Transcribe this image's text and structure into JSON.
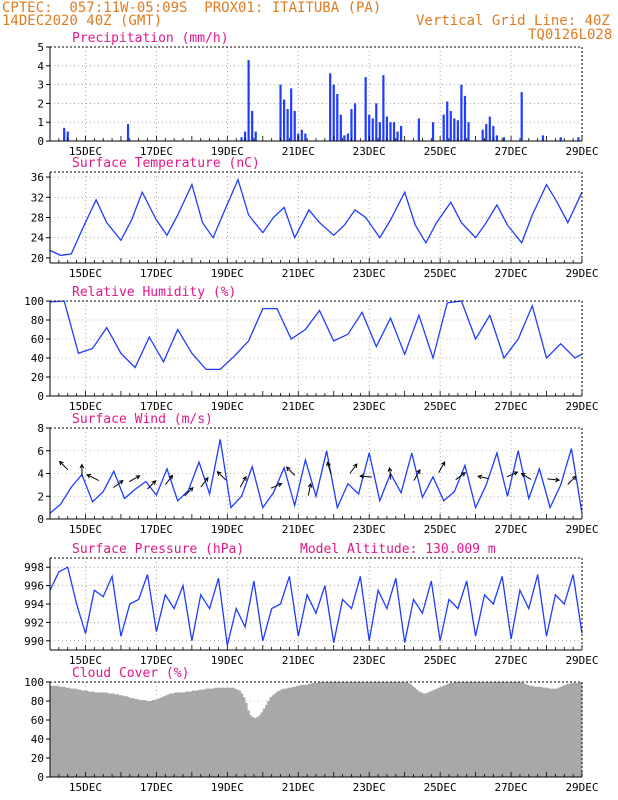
{
  "header": {
    "line1_left": "CPTEC:  057:11W-05:09S  PROX01: ITAITUBA (PA)",
    "line2_left": "14DEC2020 40Z (GMT)",
    "line2_right": "Vertical Grid Line: 40Z",
    "line3_right": "TQ0126L028"
  },
  "colors": {
    "header": "#e07b1f",
    "panel_title": "#e0178c",
    "series": "#1f3cff",
    "cloud": "#a8a8a8",
    "vector": "#000000"
  },
  "chart_data": [
    {
      "type": "bar",
      "title": "Precipitation (mm/h)",
      "ylim": [
        0,
        5
      ],
      "yticks": [
        "0",
        "1",
        "2",
        "3",
        "4",
        "5"
      ],
      "xticks": [
        "15DEC",
        "17DEC",
        "19DEC",
        "21DEC",
        "23DEC",
        "25DEC",
        "27DEC",
        "29DEC"
      ],
      "xlim_days": [
        14,
        29
      ],
      "x": [
        14.4,
        14.5,
        16.2,
        19.4,
        19.5,
        19.6,
        19.7,
        19.8,
        20.5,
        20.6,
        20.7,
        20.8,
        20.9,
        21.0,
        21.1,
        21.2,
        21.9,
        22.0,
        22.1,
        22.2,
        22.3,
        22.4,
        22.5,
        22.6,
        22.9,
        23.0,
        23.1,
        23.2,
        23.3,
        23.4,
        23.5,
        23.6,
        23.7,
        23.8,
        23.9,
        24.4,
        24.8,
        25.1,
        25.2,
        25.3,
        25.4,
        25.5,
        25.6,
        25.7,
        25.8,
        26.2,
        26.3,
        26.4,
        26.5,
        26.6,
        26.8,
        27.3,
        27.9,
        28.4,
        28.9
      ],
      "values": [
        0.7,
        0.5,
        0.9,
        0.2,
        0.5,
        4.3,
        1.6,
        0.5,
        3.0,
        2.2,
        1.7,
        2.8,
        1.6,
        0.4,
        0.6,
        0.4,
        3.6,
        3.0,
        2.5,
        1.4,
        0.3,
        0.4,
        1.7,
        2.0,
        3.4,
        1.4,
        1.2,
        2.0,
        1.0,
        3.5,
        1.3,
        1.0,
        1.0,
        0.5,
        0.8,
        1.2,
        1.0,
        1.4,
        2.1,
        1.6,
        1.2,
        1.1,
        3.0,
        2.4,
        1.0,
        0.6,
        0.9,
        1.3,
        0.8,
        0.3,
        0.2,
        2.6,
        0.3,
        0.2,
        0.2
      ]
    },
    {
      "type": "line",
      "title": "Surface Temperature (nC)",
      "ylim": [
        19,
        37
      ],
      "yticks": [
        "20",
        "24",
        "28",
        "32",
        "36"
      ],
      "xticks": [
        "15DEC",
        "17DEC",
        "19DEC",
        "21DEC",
        "23DEC",
        "25DEC",
        "27DEC",
        "29DEC"
      ],
      "x": [
        14.0,
        14.3,
        14.6,
        14.9,
        15.3,
        15.6,
        16.0,
        16.3,
        16.6,
        17.0,
        17.3,
        17.6,
        18.0,
        18.3,
        18.6,
        18.9,
        19.3,
        19.6,
        20.0,
        20.3,
        20.6,
        20.9,
        21.3,
        21.6,
        22.0,
        22.3,
        22.6,
        22.9,
        23.3,
        23.6,
        24.0,
        24.3,
        24.6,
        24.9,
        25.3,
        25.6,
        26.0,
        26.3,
        26.6,
        26.9,
        27.3,
        27.6,
        28.0,
        28.3,
        28.6,
        29.0
      ],
      "values": [
        21.5,
        20.5,
        20.8,
        25.5,
        31.5,
        27.0,
        23.5,
        27.5,
        33.0,
        27.5,
        24.5,
        28.5,
        34.5,
        27.0,
        24.0,
        29.0,
        35.5,
        28.5,
        25.0,
        28.0,
        30.0,
        24.0,
        29.5,
        27.0,
        24.5,
        26.5,
        29.5,
        28.0,
        24.0,
        27.5,
        33.0,
        26.5,
        23.0,
        27.0,
        31.0,
        27.0,
        24.0,
        27.0,
        30.5,
        26.5,
        23.0,
        28.5,
        34.5,
        31.0,
        27.0,
        33.0
      ]
    },
    {
      "type": "line",
      "title": "Relative Humidity (%)",
      "ylim": [
        0,
        100
      ],
      "yticks": [
        "0",
        "20",
        "40",
        "60",
        "80",
        "100"
      ],
      "xticks": [
        "15DEC",
        "17DEC",
        "19DEC",
        "21DEC",
        "23DEC",
        "25DEC",
        "27DEC",
        "29DEC"
      ],
      "x": [
        14.0,
        14.4,
        14.8,
        15.2,
        15.6,
        16.0,
        16.4,
        16.8,
        17.2,
        17.6,
        18.0,
        18.4,
        18.8,
        19.2,
        19.6,
        20.0,
        20.4,
        20.8,
        21.2,
        21.6,
        22.0,
        22.4,
        22.8,
        23.2,
        23.6,
        24.0,
        24.4,
        24.8,
        25.2,
        25.6,
        26.0,
        26.4,
        26.8,
        27.2,
        27.6,
        28.0,
        28.4,
        28.8,
        29.0
      ],
      "values": [
        99,
        100,
        45,
        50,
        72,
        45,
        30,
        62,
        36,
        70,
        45,
        28,
        28,
        42,
        58,
        92,
        92,
        60,
        70,
        90,
        58,
        65,
        88,
        52,
        82,
        44,
        85,
        40,
        98,
        100,
        60,
        85,
        40,
        60,
        95,
        40,
        55,
        40,
        44
      ]
    },
    {
      "type": "line",
      "title": "Surface Wind (m/s)",
      "ylim": [
        0,
        8
      ],
      "yticks": [
        "0",
        "2",
        "4",
        "6",
        "8"
      ],
      "xticks": [
        "15DEC",
        "17DEC",
        "19DEC",
        "21DEC",
        "23DEC",
        "25DEC",
        "27DEC",
        "29DEC"
      ],
      "x": [
        14.0,
        14.3,
        14.6,
        14.9,
        15.2,
        15.5,
        15.8,
        16.1,
        16.4,
        16.7,
        17.0,
        17.3,
        17.6,
        17.9,
        18.2,
        18.5,
        18.8,
        19.1,
        19.4,
        19.7,
        20.0,
        20.3,
        20.6,
        20.9,
        21.2,
        21.5,
        21.8,
        22.1,
        22.4,
        22.7,
        23.0,
        23.3,
        23.6,
        23.9,
        24.2,
        24.5,
        24.8,
        25.1,
        25.4,
        25.7,
        26.0,
        26.3,
        26.6,
        26.9,
        27.2,
        27.5,
        27.8,
        28.1,
        28.4,
        28.7,
        29.0
      ],
      "values": [
        0.5,
        1.3,
        2.8,
        3.9,
        1.5,
        2.4,
        4.2,
        1.8,
        2.6,
        3.3,
        2.1,
        4.4,
        1.6,
        2.5,
        5.0,
        2.2,
        7.0,
        1.0,
        2.0,
        4.6,
        1.0,
        2.3,
        4.5,
        1.2,
        5.2,
        2.0,
        6.0,
        1.0,
        3.1,
        2.2,
        5.8,
        1.6,
        4.0,
        2.3,
        5.8,
        1.9,
        3.7,
        1.6,
        2.4,
        4.7,
        1.0,
        3.0,
        5.8,
        2.0,
        6.0,
        1.8,
        4.4,
        1.0,
        3.0,
        6.2,
        0.5
      ],
      "vectors": [
        {
          "day": 14.45,
          "speed": 4.5,
          "u": -0.7,
          "v": 0.7
        },
        {
          "day": 14.9,
          "speed": 4.0,
          "u": 0.0,
          "v": 1.0
        },
        {
          "day": 15.3,
          "speed": 3.5,
          "u": -1.0,
          "v": 0.5
        },
        {
          "day": 15.85,
          "speed": 2.9,
          "u": 0.8,
          "v": 0.6
        },
        {
          "day": 16.3,
          "speed": 3.4,
          "u": 0.9,
          "v": 0.5
        },
        {
          "day": 16.8,
          "speed": 2.8,
          "u": 0.7,
          "v": 0.7
        },
        {
          "day": 17.3,
          "speed": 3.2,
          "u": 0.6,
          "v": 0.8
        },
        {
          "day": 17.85,
          "speed": 2.2,
          "u": 0.7,
          "v": 0.7
        },
        {
          "day": 18.3,
          "speed": 3.0,
          "u": 0.6,
          "v": 0.8
        },
        {
          "day": 18.9,
          "speed": 3.6,
          "u": -0.7,
          "v": 0.7
        },
        {
          "day": 19.4,
          "speed": 3.0,
          "u": 0.5,
          "v": 0.9
        },
        {
          "day": 20.3,
          "speed": 2.8,
          "u": 0.9,
          "v": 0.4
        },
        {
          "day": 20.85,
          "speed": 4.0,
          "u": -0.7,
          "v": 0.7
        },
        {
          "day": 21.3,
          "speed": 2.3,
          "u": 0.2,
          "v": 1.0
        },
        {
          "day": 21.9,
          "speed": 4.2,
          "u": -0.3,
          "v": 1.0
        },
        {
          "day": 22.5,
          "speed": 4.2,
          "u": 0.6,
          "v": 0.8
        },
        {
          "day": 23.0,
          "speed": 3.7,
          "u": -1.0,
          "v": 0.1
        },
        {
          "day": 23.6,
          "speed": 3.7,
          "u": -0.1,
          "v": 1.0
        },
        {
          "day": 24.3,
          "speed": 3.6,
          "u": 0.5,
          "v": 0.9
        },
        {
          "day": 25.0,
          "speed": 4.3,
          "u": 0.5,
          "v": 0.9
        },
        {
          "day": 25.5,
          "speed": 3.6,
          "u": 0.8,
          "v": 0.6
        },
        {
          "day": 26.3,
          "speed": 3.6,
          "u": -0.9,
          "v": 0.2
        },
        {
          "day": 26.95,
          "speed": 3.8,
          "u": 0.9,
          "v": 0.4
        },
        {
          "day": 27.5,
          "speed": 3.6,
          "u": -0.8,
          "v": 0.5
        },
        {
          "day": 28.1,
          "speed": 3.5,
          "u": 1.0,
          "v": -0.1
        },
        {
          "day": 28.65,
          "speed": 3.2,
          "u": 0.7,
          "v": 0.7
        }
      ]
    },
    {
      "type": "line",
      "title": "Surface Pressure (hPa)",
      "subtitle": "Model Altitude: 130.009 m",
      "ylim": [
        989,
        999
      ],
      "yticks": [
        "990",
        "992",
        "994",
        "996",
        "998"
      ],
      "xticks": [
        "15DEC",
        "17DEC",
        "19DEC",
        "21DEC",
        "23DEC",
        "25DEC",
        "27DEC",
        "29DEC"
      ],
      "x": [
        14.0,
        14.25,
        14.5,
        14.75,
        15.0,
        15.25,
        15.5,
        15.75,
        16.0,
        16.25,
        16.5,
        16.75,
        17.0,
        17.25,
        17.5,
        17.75,
        18.0,
        18.25,
        18.5,
        18.75,
        19.0,
        19.25,
        19.5,
        19.75,
        20.0,
        20.25,
        20.5,
        20.75,
        21.0,
        21.25,
        21.5,
        21.75,
        22.0,
        22.25,
        22.5,
        22.75,
        23.0,
        23.25,
        23.5,
        23.75,
        24.0,
        24.25,
        24.5,
        24.75,
        25.0,
        25.25,
        25.5,
        25.75,
        26.0,
        26.25,
        26.5,
        26.75,
        27.0,
        27.25,
        27.5,
        27.75,
        28.0,
        28.25,
        28.5,
        28.75,
        29.0
      ],
      "values": [
        995.5,
        997.5,
        998.0,
        994.0,
        990.8,
        995.5,
        994.8,
        997.0,
        990.5,
        994.0,
        994.5,
        997.2,
        991.0,
        995.0,
        993.5,
        996.0,
        990.0,
        995.0,
        993.5,
        996.8,
        989.5,
        993.5,
        991.5,
        996.5,
        990.0,
        993.5,
        994.0,
        997.0,
        990.5,
        995.0,
        993.0,
        996.0,
        989.8,
        994.5,
        993.5,
        997.0,
        990.0,
        995.5,
        993.5,
        996.8,
        989.8,
        994.5,
        993.0,
        996.5,
        990.0,
        994.5,
        993.5,
        996.5,
        990.5,
        995.0,
        994.0,
        997.0,
        990.2,
        995.5,
        993.5,
        997.2,
        990.5,
        995.0,
        994.0,
        997.2,
        990.8
      ]
    },
    {
      "type": "bar",
      "title": "Cloud Cover (%)",
      "ylim": [
        0,
        100
      ],
      "yticks": [
        "0",
        "20",
        "40",
        "60",
        "80",
        "100"
      ],
      "xticks": [
        "15DEC",
        "17DEC",
        "19DEC",
        "21DEC",
        "23DEC",
        "25DEC",
        "27DEC",
        "29DEC"
      ],
      "x_start_day": 14.0,
      "x_step_day": 0.0625,
      "values": [
        96,
        96,
        96,
        96,
        95,
        95,
        95,
        94,
        94,
        93,
        93,
        93,
        92,
        92,
        91,
        91,
        91,
        90,
        90,
        90,
        89,
        89,
        89,
        89,
        89,
        89,
        88,
        88,
        88,
        87,
        87,
        86,
        86,
        85,
        85,
        84,
        83,
        83,
        82,
        82,
        81,
        81,
        81,
        80,
        80,
        80,
        81,
        81,
        82,
        83,
        84,
        85,
        86,
        87,
        88,
        88,
        89,
        89,
        89,
        89,
        89,
        90,
        90,
        90,
        91,
        91,
        91,
        92,
        92,
        92,
        93,
        93,
        93,
        93,
        94,
        94,
        94,
        94,
        94,
        94,
        94,
        94,
        94,
        93,
        92,
        91,
        88,
        84,
        78,
        70,
        65,
        63,
        62,
        63,
        65,
        68,
        72,
        76,
        80,
        84,
        86,
        88,
        90,
        91,
        92,
        93,
        93,
        94,
        94,
        95,
        95,
        96,
        96,
        97,
        97,
        97,
        98,
        98,
        99,
        99,
        99,
        100,
        100,
        100,
        100,
        100,
        100,
        100,
        100,
        100,
        100,
        100,
        100,
        100,
        100,
        100,
        100,
        100,
        100,
        100,
        100,
        100,
        100,
        100,
        100,
        100,
        100,
        100,
        100,
        100,
        100,
        100,
        100,
        100,
        100,
        100,
        100,
        100,
        100,
        100,
        100,
        99,
        98,
        96,
        94,
        92,
        90,
        89,
        88,
        88,
        89,
        90,
        91,
        92,
        93,
        94,
        95,
        96,
        97,
        98,
        99,
        99,
        100,
        100,
        100,
        100,
        100,
        100,
        100,
        100,
        100,
        100,
        100,
        100,
        100,
        100,
        100,
        100,
        100,
        100,
        100,
        100,
        100,
        100,
        100,
        100,
        100,
        100,
        100,
        100,
        100,
        100,
        100,
        99,
        98,
        97,
        96,
        96,
        95,
        95,
        95,
        95,
        94,
        94,
        94,
        93,
        93,
        93,
        93,
        94,
        95,
        96,
        97,
        98,
        98,
        99,
        99,
        99,
        99,
        100,
        100,
        100,
        100,
        100,
        100,
        100,
        100,
        100,
        100,
        100,
        100,
        100,
        100,
        100,
        100,
        100,
        100,
        100,
        99,
        97,
        94,
        90,
        84,
        78,
        74,
        72,
        72,
        74,
        78,
        84,
        90,
        94,
        97,
        98,
        99,
        99,
        98,
        97,
        95,
        93,
        91,
        89,
        88,
        87,
        87,
        88,
        89,
        90,
        92,
        94,
        96,
        97,
        98,
        98,
        97,
        96,
        94,
        92,
        90,
        88,
        86,
        85,
        84,
        84,
        85,
        86,
        88,
        90,
        92,
        94,
        96,
        98,
        99
      ]
    }
  ]
}
